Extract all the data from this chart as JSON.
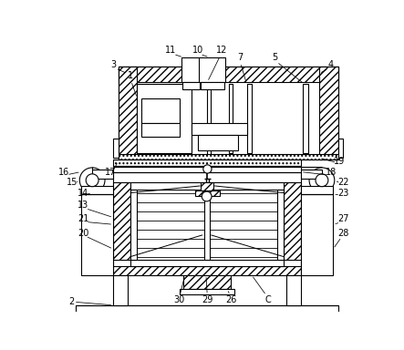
{
  "bg": "#ffffff",
  "lw": 0.8,
  "fig_w": 4.43,
  "fig_h": 3.84,
  "dpi": 100,
  "labels": [
    [
      "1",
      112,
      48
    ],
    [
      "2",
      28,
      370
    ],
    [
      "3",
      88,
      32
    ],
    [
      "4",
      398,
      32
    ],
    [
      "5",
      318,
      22
    ],
    [
      "7",
      268,
      22
    ],
    [
      "10",
      208,
      12
    ],
    [
      "11",
      170,
      12
    ],
    [
      "12",
      242,
      12
    ],
    [
      "13",
      45,
      232
    ],
    [
      "14",
      45,
      215
    ],
    [
      "15",
      30,
      200
    ],
    [
      "16",
      18,
      186
    ],
    [
      "17",
      84,
      186
    ],
    [
      "18",
      398,
      186
    ],
    [
      "19",
      410,
      170
    ],
    [
      "20",
      45,
      272
    ],
    [
      "21",
      45,
      252
    ],
    [
      "22",
      415,
      200
    ],
    [
      "23",
      415,
      215
    ],
    [
      "26",
      256,
      368
    ],
    [
      "27",
      415,
      252
    ],
    [
      "28",
      415,
      272
    ],
    [
      "29",
      222,
      368
    ],
    [
      "30",
      182,
      368
    ],
    [
      "C",
      308,
      368
    ]
  ]
}
